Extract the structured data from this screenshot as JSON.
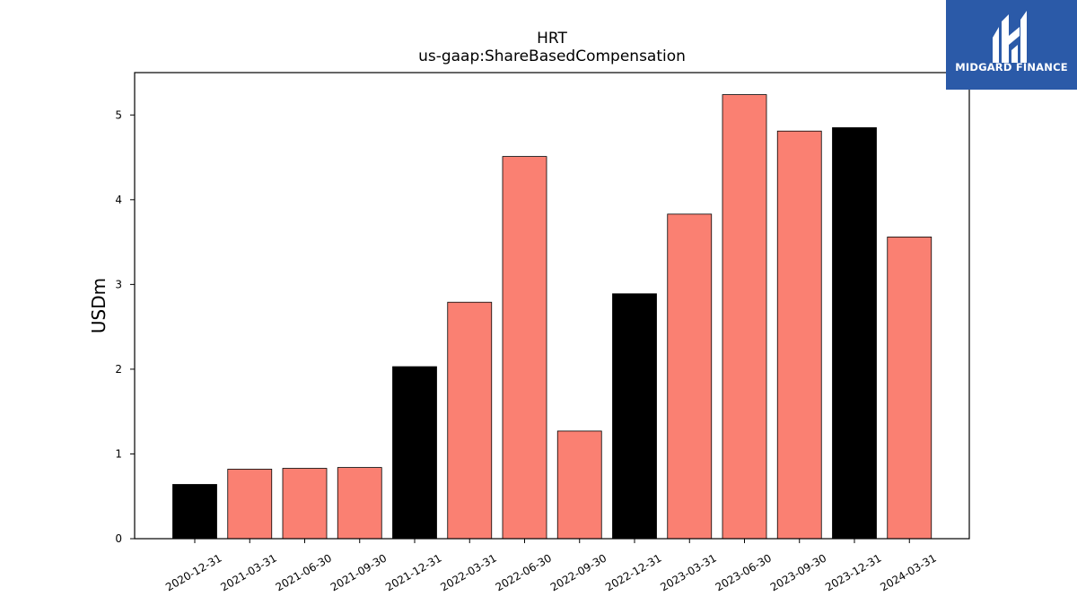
{
  "chart_data": {
    "type": "bar",
    "title": "HRT",
    "subtitle": "us-gaap:ShareBasedCompensation",
    "xlabel": "",
    "ylabel": "USDm",
    "ylim": [
      0,
      5.5
    ],
    "yticks": [
      0,
      1,
      2,
      3,
      4,
      5
    ],
    "grid": false,
    "categories": [
      "2020-12-31",
      "2021-03-31",
      "2021-06-30",
      "2021-09-30",
      "2021-12-31",
      "2022-03-31",
      "2022-06-30",
      "2022-09-30",
      "2022-12-31",
      "2023-03-31",
      "2023-06-30",
      "2023-09-30",
      "2023-12-31",
      "2024-03-31"
    ],
    "values": [
      0.64,
      0.82,
      0.83,
      0.84,
      2.03,
      2.79,
      4.51,
      1.27,
      2.89,
      3.83,
      5.24,
      4.81,
      4.85,
      3.56
    ],
    "bar_colors": [
      "#000000",
      "#fa8072",
      "#fa8072",
      "#fa8072",
      "#000000",
      "#fa8072",
      "#fa8072",
      "#fa8072",
      "#000000",
      "#fa8072",
      "#fa8072",
      "#fa8072",
      "#000000",
      "#fa8072"
    ],
    "edge_color": "#000000"
  },
  "logo": {
    "text": "MIDGARD FINANCE",
    "background": "#2b5aa8",
    "color": "#ffffff"
  }
}
